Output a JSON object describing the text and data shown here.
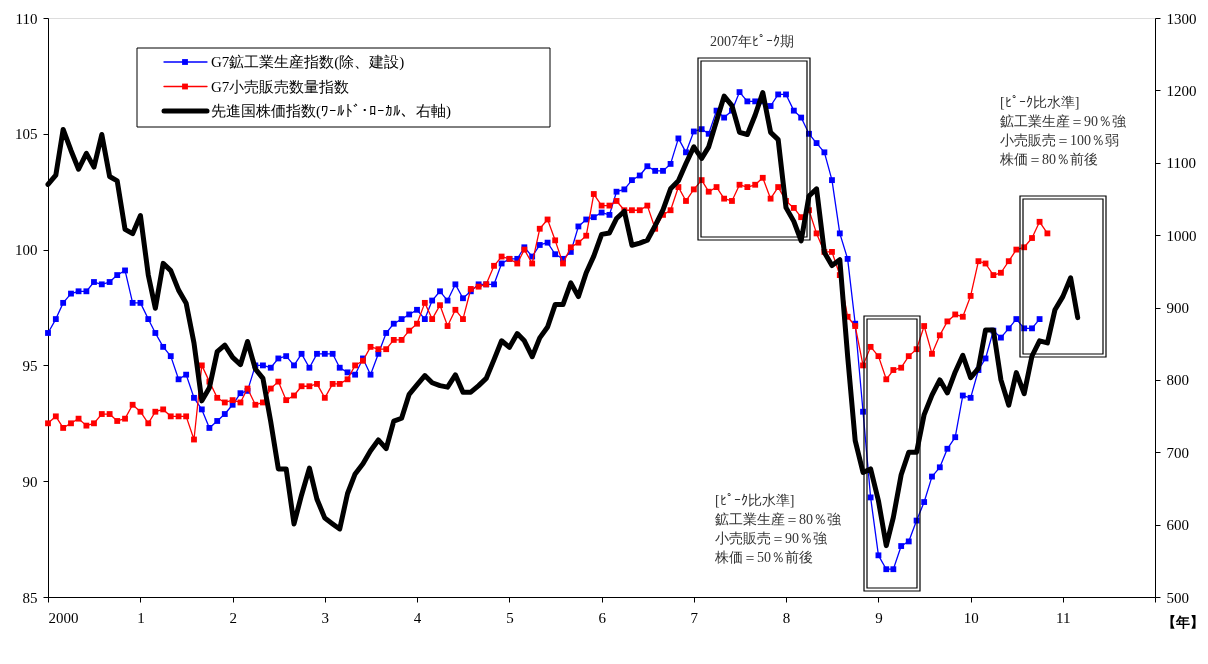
{
  "chart_data": {
    "type": "line",
    "x": [
      "2000-01",
      "2000-02",
      "2000-03",
      "2000-04",
      "2000-05",
      "2000-06",
      "2000-07",
      "2000-08",
      "2000-09",
      "2000-10",
      "2000-11",
      "2000-12",
      "2001-01",
      "2001-02",
      "2001-03",
      "2001-04",
      "2001-05",
      "2001-06",
      "2001-07",
      "2001-08",
      "2001-09",
      "2001-10",
      "2001-11",
      "2001-12",
      "2002-01",
      "2002-02",
      "2002-03",
      "2002-04",
      "2002-05",
      "2002-06",
      "2002-07",
      "2002-08",
      "2002-09",
      "2002-10",
      "2002-11",
      "2002-12",
      "2003-01",
      "2003-02",
      "2003-03",
      "2003-04",
      "2003-05",
      "2003-06",
      "2003-07",
      "2003-08",
      "2003-09",
      "2003-10",
      "2003-11",
      "2003-12",
      "2004-01",
      "2004-02",
      "2004-03",
      "2004-04",
      "2004-05",
      "2004-06",
      "2004-07",
      "2004-08",
      "2004-09",
      "2004-10",
      "2004-11",
      "2004-12",
      "2005-01",
      "2005-02",
      "2005-03",
      "2005-04",
      "2005-05",
      "2005-06",
      "2005-07",
      "2005-08",
      "2005-09",
      "2005-10",
      "2005-11",
      "2005-12",
      "2006-01",
      "2006-02",
      "2006-03",
      "2006-04",
      "2006-05",
      "2006-06",
      "2006-07",
      "2006-08",
      "2006-09",
      "2006-10",
      "2006-11",
      "2006-12",
      "2007-01",
      "2007-02",
      "2007-03",
      "2007-04",
      "2007-05",
      "2007-06",
      "2007-07",
      "2007-08",
      "2007-09",
      "2007-10",
      "2007-11",
      "2007-12",
      "2008-01",
      "2008-02",
      "2008-03",
      "2008-04",
      "2008-05",
      "2008-06",
      "2008-07",
      "2008-08",
      "2008-09",
      "2008-10",
      "2008-11",
      "2008-12",
      "2009-01",
      "2009-02",
      "2009-03",
      "2009-04",
      "2009-05",
      "2009-06",
      "2009-07",
      "2009-08",
      "2009-09",
      "2009-10",
      "2009-11",
      "2009-12",
      "2010-01",
      "2010-02",
      "2010-03",
      "2010-04",
      "2010-05",
      "2010-06",
      "2010-07",
      "2010-08",
      "2010-09",
      "2010-10",
      "2010-11",
      "2010-12",
      "2011-01",
      "2011-02",
      "2011-03"
    ],
    "series": [
      {
        "name": "G7鉱工業生産指数(除、建設)",
        "color": "#0000ff",
        "marker": "square",
        "values": [
          96.4,
          97.0,
          97.7,
          98.1,
          98.2,
          98.2,
          98.6,
          98.5,
          98.6,
          98.9,
          99.1,
          97.7,
          97.7,
          97.0,
          96.4,
          95.8,
          95.4,
          94.4,
          94.6,
          93.6,
          93.1,
          92.3,
          92.6,
          92.9,
          93.3,
          93.8,
          93.9,
          95.0,
          95.0,
          94.9,
          95.3,
          95.4,
          95.0,
          95.5,
          94.9,
          95.5,
          95.5,
          95.5,
          94.9,
          94.7,
          94.6,
          95.3,
          94.6,
          95.5,
          96.4,
          96.8,
          97.0,
          97.2,
          97.4,
          97.0,
          97.8,
          98.2,
          97.8,
          98.5,
          97.9,
          98.2,
          98.5,
          98.5,
          98.5,
          99.4,
          99.6,
          99.6,
          100.1,
          99.7,
          100.2,
          100.3,
          99.8,
          99.6,
          99.9,
          101.0,
          101.3,
          101.4,
          101.6,
          101.5,
          102.5,
          102.6,
          103.0,
          103.2,
          103.6,
          103.4,
          103.4,
          103.7,
          104.8,
          104.2,
          105.1,
          105.2,
          105.0,
          106.0,
          105.7,
          106.0,
          106.8,
          106.4,
          106.4,
          106.4,
          106.2,
          106.7,
          106.7,
          106.0,
          105.7,
          105.0,
          104.6,
          104.2,
          103.0,
          100.7,
          99.6,
          96.8,
          93.0,
          89.3,
          86.8,
          86.2,
          86.2,
          87.2,
          87.4,
          88.3,
          89.1,
          90.2,
          90.6,
          91.4,
          91.9,
          93.7,
          93.6,
          94.8,
          95.3,
          96.5,
          96.2,
          96.6,
          97.0,
          96.6,
          96.6,
          97.0,
          null,
          null,
          null,
          null,
          null
        ]
      },
      {
        "name": "G7小売販売数量指数",
        "color": "#ff0000",
        "marker": "square",
        "values": [
          92.5,
          92.8,
          92.3,
          92.5,
          92.7,
          92.4,
          92.5,
          92.9,
          92.9,
          92.6,
          92.7,
          93.3,
          93.0,
          92.5,
          93.0,
          93.1,
          92.8,
          92.8,
          92.8,
          91.8,
          95.0,
          94.3,
          93.6,
          93.4,
          93.5,
          93.4,
          94.0,
          93.3,
          93.4,
          94.0,
          94.3,
          93.5,
          93.7,
          94.1,
          94.1,
          94.2,
          93.6,
          94.2,
          94.2,
          94.4,
          95.0,
          95.2,
          95.8,
          95.7,
          95.7,
          96.1,
          96.1,
          96.5,
          96.8,
          97.7,
          97.0,
          97.6,
          96.7,
          97.4,
          97.0,
          98.3,
          98.4,
          98.5,
          99.3,
          99.7,
          99.6,
          99.4,
          100.0,
          99.4,
          100.9,
          101.3,
          100.4,
          99.4,
          100.1,
          100.3,
          100.6,
          102.4,
          101.9,
          101.9,
          102.1,
          101.7,
          101.7,
          101.7,
          101.9,
          100.9,
          101.5,
          101.7,
          102.7,
          102.1,
          102.6,
          103.0,
          102.5,
          102.7,
          102.2,
          102.1,
          102.8,
          102.7,
          102.8,
          103.1,
          102.2,
          102.7,
          102.1,
          101.8,
          101.4,
          101.7,
          100.7,
          99.9,
          99.9,
          98.9,
          97.1,
          96.7,
          95.0,
          95.8,
          95.4,
          94.4,
          94.8,
          94.9,
          95.4,
          95.7,
          96.7,
          95.5,
          96.3,
          96.9,
          97.2,
          97.1,
          98.0,
          99.5,
          99.4,
          98.9,
          99.0,
          99.5,
          100.0,
          100.1,
          100.5,
          101.2,
          100.7,
          null,
          null,
          null,
          null
        ]
      },
      {
        "name": "先進国株価指数(ﾜｰﾙﾄﾞ･ﾛｰｶﾙ、右軸)",
        "color": "#000000",
        "marker": "none",
        "axis": "y2",
        "values": [
          1070,
          1083,
          1146,
          1117,
          1091,
          1113,
          1094,
          1139,
          1081,
          1075,
          1008,
          1002,
          1027,
          945,
          899,
          961,
          951,
          924,
          906,
          851,
          771,
          789,
          839,
          848,
          831,
          821,
          853,
          815,
          802,
          742,
          677,
          677,
          601,
          641,
          678,
          635,
          609,
          601,
          594,
          643,
          670,
          684,
          702,
          717,
          705,
          743,
          747,
          780,
          793,
          806,
          796,
          792,
          790,
          807,
          783,
          783,
          792,
          802,
          828,
          854,
          845,
          864,
          854,
          832,
          858,
          873,
          904,
          904,
          934,
          915,
          948,
          971,
          1001,
          1003,
          1023,
          1033,
          986,
          989,
          993,
          1013,
          1035,
          1064,
          1075,
          1099,
          1122,
          1106,
          1122,
          1158,
          1192,
          1179,
          1142,
          1139,
          1166,
          1197,
          1142,
          1132,
          1038,
          1019,
          992,
          1054,
          1064,
          976,
          958,
          966,
          833,
          716,
          672,
          677,
          633,
          571,
          610,
          669,
          700,
          700,
          752,
          779,
          800,
          782,
          811,
          834,
          803,
          816,
          869,
          869,
          800,
          765,
          810,
          781,
          833,
          854,
          851,
          897,
          915,
          941,
          886
        ]
      }
    ],
    "xlim": [
      "2000-01",
      "2012-01"
    ],
    "xticks": [
      {
        "value": "2000-01",
        "label": "2000"
      },
      {
        "value": "2001-01",
        "label": "1"
      },
      {
        "value": "2002-01",
        "label": "2"
      },
      {
        "value": "2003-01",
        "label": "3"
      },
      {
        "value": "2004-01",
        "label": "4"
      },
      {
        "value": "2005-01",
        "label": "5"
      },
      {
        "value": "2006-01",
        "label": "6"
      },
      {
        "value": "2007-01",
        "label": "7"
      },
      {
        "value": "2008-01",
        "label": "8"
      },
      {
        "value": "2009-01",
        "label": "9"
      },
      {
        "value": "2010-01",
        "label": "10"
      },
      {
        "value": "2011-01",
        "label": "11"
      },
      {
        "value": "2012-01",
        "label": null
      }
    ],
    "xlabel": "【年】",
    "ylim": [
      85,
      110
    ],
    "yticks": [
      85,
      90,
      95,
      100,
      105,
      110
    ],
    "y2lim": [
      500,
      1300
    ],
    "y2ticks": [
      500,
      600,
      700,
      800,
      900,
      1000,
      1100,
      1200,
      1300
    ],
    "legend": "top left",
    "annotations": [
      "2007年ﾋﾟｰｸ期",
      "[ﾋﾟｰｸ比水準]",
      "鉱工業生産＝80％強",
      "小売販売＝90％強",
      "株価＝50％前後",
      "[ﾋﾟｰｸ比水準]",
      "鉱工業生産＝90％強",
      "小売販売＝100％弱",
      "株価＝80％前後"
    ]
  }
}
